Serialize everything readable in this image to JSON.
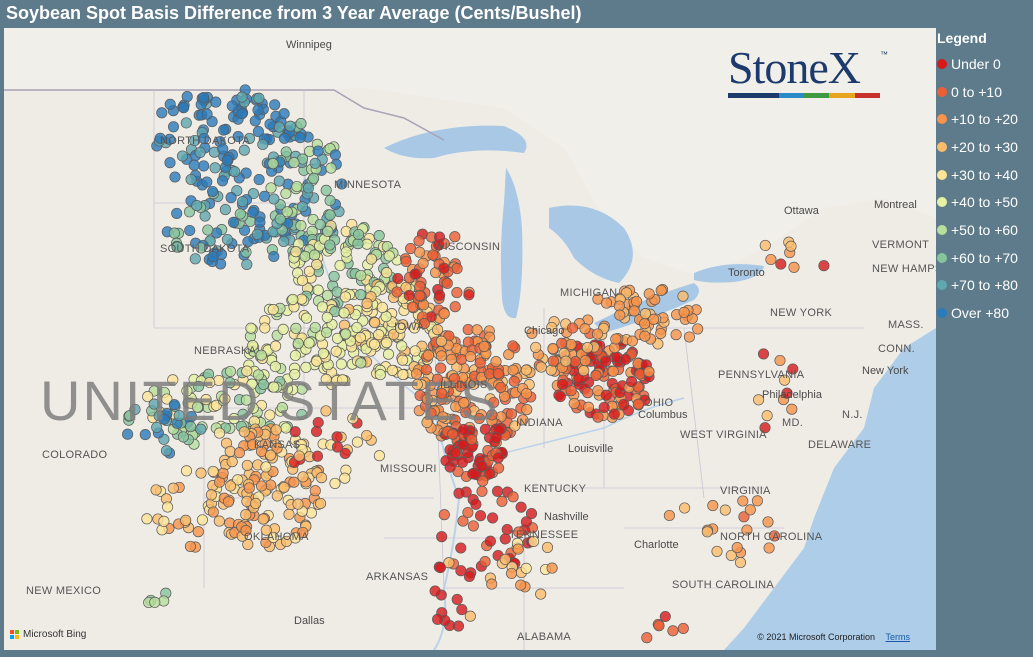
{
  "title": "Soybean Spot Basis Difference from 3 Year Average (Cents/Bushel)",
  "legend": {
    "title": "Legend",
    "items": [
      {
        "label": "Under 0",
        "color": "#d7191c"
      },
      {
        "label": "0 to +10",
        "color": "#ec5f34"
      },
      {
        "label": "+10 to +20",
        "color": "#f7934a"
      },
      {
        "label": "+20 to +30",
        "color": "#fbbd6c"
      },
      {
        "label": "+30 to +40",
        "color": "#fde597"
      },
      {
        "label": "+40 to +50",
        "color": "#e6f1a3"
      },
      {
        "label": "+50 to +60",
        "color": "#b6de9c"
      },
      {
        "label": "+60 to +70",
        "color": "#86c49e"
      },
      {
        "label": "+70 to +80",
        "color": "#5ea8b0"
      },
      {
        "label": "Over +80",
        "color": "#2b7bba"
      }
    ]
  },
  "logo": {
    "text": "StoneX",
    "tm": "™",
    "bar_colors": [
      "#1c3a6b",
      "#1c3a6b",
      "#2a8ac8",
      "#3d9a41",
      "#e8a31f",
      "#c9302c"
    ]
  },
  "map": {
    "country_label": "UNITED STATES",
    "states": [
      "NORTH DAKOTA",
      "SOUTH DAKOTA",
      "MINNESOTA",
      "NEBRASKA",
      "COLORADO",
      "WISCONSIN",
      "MICHIGAN",
      "IOWA",
      "MISSOURI",
      "KANSAS",
      "OKLAHOMA",
      "ARKANSAS",
      "TENNESSEE",
      "KENTUCKY",
      "INDIANA",
      "ILLINOIS",
      "OHIO",
      "WEST VIRGINIA",
      "VIRGINIA",
      "NORTH CAROLINA",
      "SOUTH CAROLINA",
      "ALABAMA",
      "PENNSYLVANIA",
      "NEW YORK",
      "NEW MEXICO",
      "VERMONT",
      "NEW HAMPSHIRE",
      "MASS.",
      "CONN.",
      "N.J.",
      "MD.",
      "DELAWARE"
    ],
    "cities": [
      "Winnipeg",
      "Ottawa",
      "Montreal",
      "Toronto",
      "Chicago",
      "Columbus",
      "Louisville",
      "Nashville",
      "Charlotte",
      "Philadelphia",
      "New York",
      "Dallas"
    ]
  },
  "attribution": {
    "bing": "Microsoft Bing",
    "copyright": "© 2021 Microsoft Corporation",
    "terms": "Terms"
  }
}
